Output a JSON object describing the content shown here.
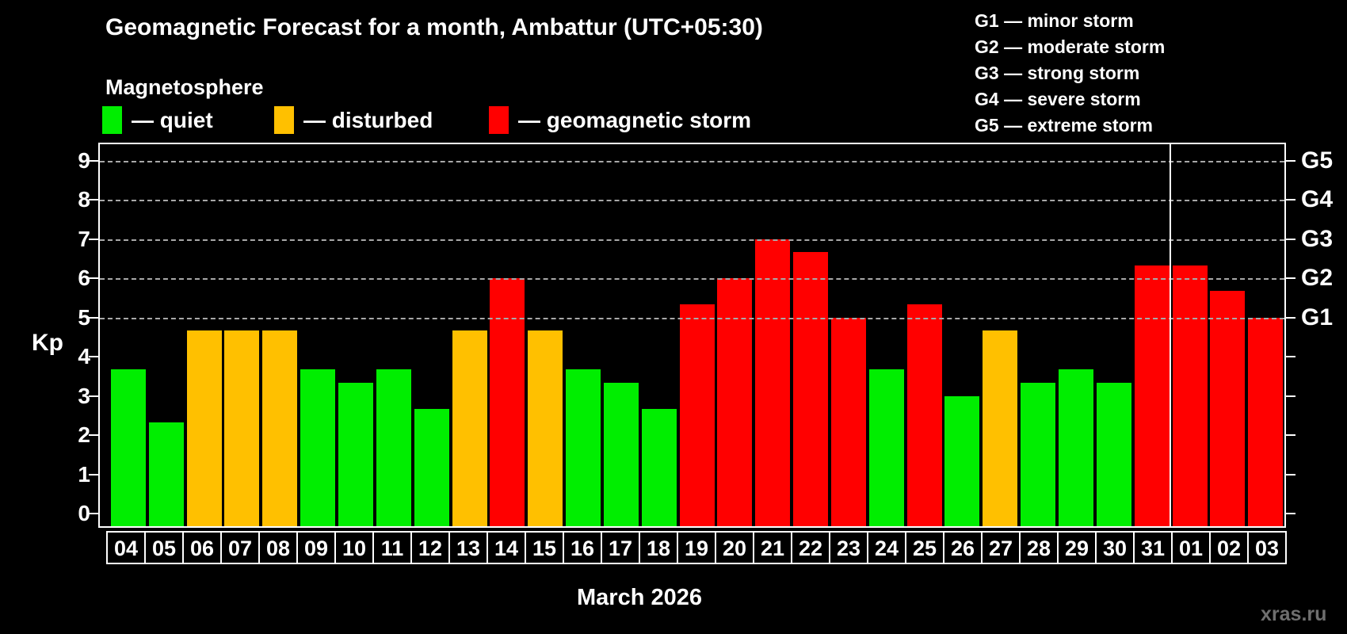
{
  "header": {
    "title": "Geomagnetic Forecast for a month, Ambattur (UTC+05:30)",
    "subtitle": "Magnetosphere"
  },
  "legend": {
    "items": [
      {
        "key": "quiet",
        "label": "— quiet"
      },
      {
        "key": "disturbed",
        "label": "— disturbed"
      },
      {
        "key": "storm",
        "label": "— geomagnetic storm"
      }
    ]
  },
  "g_legend": {
    "lines": [
      "G1 — minor storm",
      "G2 — moderate storm",
      "G3 — strong storm",
      "G4 — severe storm",
      "G5 — extreme storm"
    ]
  },
  "watermark": "xras.ru",
  "chart_data": {
    "type": "bar",
    "title": "Geomagnetic Forecast for a month, Ambattur (UTC+05:30)",
    "subtitle": "Magnetosphere",
    "xlabel": "March 2026",
    "ylabel": "Kp",
    "ylim": [
      0,
      9.45
    ],
    "yticks": [
      0,
      1,
      2,
      3,
      4,
      5,
      6,
      7,
      8,
      9
    ],
    "gridlines_at": [
      5,
      6,
      7,
      8,
      9
    ],
    "grid": true,
    "right_axis_labels": [
      {
        "label": "G1",
        "kp": 5
      },
      {
        "label": "G2",
        "kp": 6
      },
      {
        "label": "G3",
        "kp": 7
      },
      {
        "label": "G4",
        "kp": 8
      },
      {
        "label": "G5",
        "kp": 9
      }
    ],
    "categories": [
      "04",
      "05",
      "06",
      "07",
      "08",
      "09",
      "10",
      "11",
      "12",
      "13",
      "14",
      "15",
      "16",
      "17",
      "18",
      "19",
      "20",
      "21",
      "22",
      "23",
      "24",
      "25",
      "26",
      "27",
      "28",
      "29",
      "30",
      "31",
      "01",
      "02",
      "03"
    ],
    "values": [
      3.67,
      2.33,
      4.67,
      4.67,
      4.67,
      3.67,
      3.33,
      3.67,
      2.67,
      4.67,
      6.0,
      4.67,
      3.67,
      3.33,
      2.67,
      5.33,
      6.0,
      7.0,
      6.67,
      5.0,
      3.67,
      5.33,
      3.0,
      4.67,
      3.33,
      3.67,
      3.33,
      6.33,
      6.33,
      5.67,
      5.0
    ],
    "statuses": [
      "quiet",
      "quiet",
      "disturbed",
      "disturbed",
      "disturbed",
      "quiet",
      "quiet",
      "quiet",
      "quiet",
      "disturbed",
      "storm",
      "disturbed",
      "quiet",
      "quiet",
      "quiet",
      "storm",
      "storm",
      "storm",
      "storm",
      "storm",
      "quiet",
      "storm",
      "quiet",
      "disturbed",
      "quiet",
      "quiet",
      "quiet",
      "storm",
      "storm",
      "storm",
      "storm"
    ],
    "month_label": "March 2026",
    "month_separator_after_index": 27,
    "colors": {
      "quiet": "#00ee00",
      "disturbed": "#ffc000",
      "storm": "#ff0000",
      "grid": "#a8a8a8",
      "axis": "#ffffff",
      "background": "#000000",
      "watermark": "#6f6f6f"
    }
  }
}
